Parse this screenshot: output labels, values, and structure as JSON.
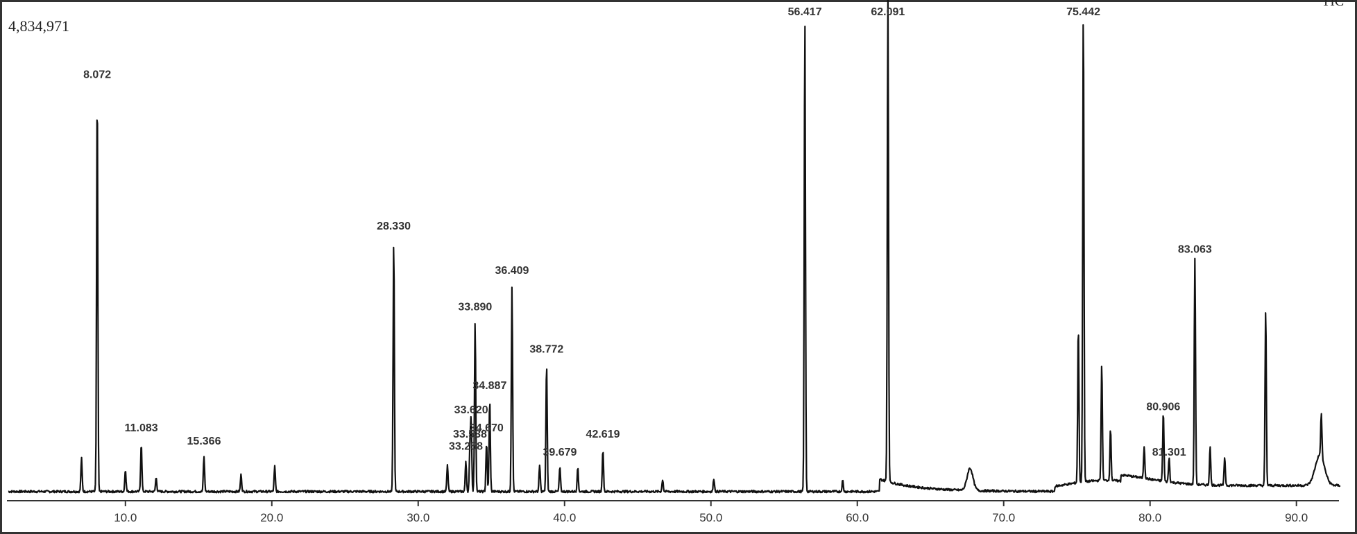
{
  "chart_data": {
    "type": "line",
    "y_max_label": "4,834,971",
    "corner_label": "TIC",
    "xlim": [
      2.0,
      93.0
    ],
    "ylim": [
      0,
      4834971
    ],
    "x_ticks": [
      "10.0",
      "20.0",
      "30.0",
      "40.0",
      "50.0",
      "60.0",
      "70.0",
      "80.0",
      "90.0"
    ],
    "x_tick_values": [
      10,
      20,
      30,
      40,
      50,
      60,
      70,
      80,
      90
    ],
    "grid": false,
    "labeled_peaks": [
      {
        "label": "8.072",
        "x": 8.072,
        "y": 3980000
      },
      {
        "label": "11.083",
        "x": 11.083,
        "y": 480000
      },
      {
        "label": "15.366",
        "x": 15.366,
        "y": 350000
      },
      {
        "label": "28.330",
        "x": 28.33,
        "y": 2480000
      },
      {
        "label": "33.258",
        "x": 33.258,
        "y": 300000
      },
      {
        "label": "33.538",
        "x": 33.538,
        "y": 420000
      },
      {
        "label": "33.620",
        "x": 33.62,
        "y": 660000
      },
      {
        "label": "33.890",
        "x": 33.89,
        "y": 1680000
      },
      {
        "label": "34.670",
        "x": 34.67,
        "y": 480000
      },
      {
        "label": "34.887",
        "x": 34.887,
        "y": 900000
      },
      {
        "label": "36.409",
        "x": 36.409,
        "y": 2040000
      },
      {
        "label": "38.772",
        "x": 38.772,
        "y": 1260000
      },
      {
        "label": "39.679",
        "x": 39.679,
        "y": 240000
      },
      {
        "label": "42.619",
        "x": 42.619,
        "y": 420000
      },
      {
        "label": "56.417",
        "x": 56.417,
        "y": 4680000
      },
      {
        "label": "62.091",
        "x": 62.091,
        "y": 4834971
      },
      {
        "label": "75.442",
        "x": 75.442,
        "y": 4720000
      },
      {
        "label": "80.906",
        "x": 80.906,
        "y": 690000
      },
      {
        "label": "81.301",
        "x": 81.301,
        "y": 240000
      },
      {
        "label": "83.063",
        "x": 83.063,
        "y": 2250000
      }
    ],
    "other_peaks": [
      {
        "x": 7.0,
        "y": 330000
      },
      {
        "x": 10.0,
        "y": 220000
      },
      {
        "x": 12.1,
        "y": 140000
      },
      {
        "x": 17.9,
        "y": 170000
      },
      {
        "x": 20.2,
        "y": 250000
      },
      {
        "x": 32.0,
        "y": 260000
      },
      {
        "x": 38.3,
        "y": 260000
      },
      {
        "x": 40.9,
        "y": 240000
      },
      {
        "x": 46.7,
        "y": 120000
      },
      {
        "x": 50.2,
        "y": 130000
      },
      {
        "x": 59.0,
        "y": 110000
      },
      {
        "x": 75.1,
        "y": 1560000
      },
      {
        "x": 76.7,
        "y": 1150000
      },
      {
        "x": 77.3,
        "y": 510000
      },
      {
        "x": 79.6,
        "y": 320000
      },
      {
        "x": 84.1,
        "y": 380000
      },
      {
        "x": 85.1,
        "y": 280000
      },
      {
        "x": 87.9,
        "y": 1750000
      },
      {
        "x": 91.7,
        "y": 420000
      }
    ],
    "broad_features": [
      {
        "x": 67.7,
        "y": 220000,
        "width": 0.28
      },
      {
        "x": 91.6,
        "y": 300000,
        "width": 0.45
      }
    ]
  }
}
